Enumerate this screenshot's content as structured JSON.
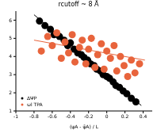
{
  "chart_data": {
    "type": "scatter",
    "title": "rcutoff ~ 8 Å",
    "x_label": "(ψA - ψ̄A) / L",
    "xlim": [
      -1,
      0.5
    ],
    "xticks": [
      -1,
      -0.8,
      -0.6,
      -0.4,
      -0.2,
      0,
      0.2,
      0.4
    ],
    "ylim": [
      1,
      6.5
    ],
    "yticks": [
      1,
      2,
      3,
      4,
      5,
      6
    ],
    "legend": "lower left",
    "grid": false,
    "series": [
      {
        "name": "ΔΨP",
        "color": "#000000",
        "marker": "circle",
        "x": [
          -0.74,
          -0.68,
          -0.62,
          -0.58,
          -0.52,
          -0.47,
          -0.43,
          -0.4,
          -0.36,
          -0.32,
          -0.28,
          -0.25,
          -0.21,
          -0.18,
          -0.14,
          -0.11,
          -0.07,
          -0.04,
          0,
          0.03,
          0.07,
          0.1,
          0.14,
          0.18,
          0.22,
          0.27,
          0.32
        ],
        "values": [
          5.95,
          5.7,
          5.5,
          5.2,
          5.1,
          4.9,
          4.6,
          4.75,
          4.4,
          4.2,
          4.1,
          3.95,
          3.8,
          3.6,
          3.5,
          3.3,
          3.2,
          3.0,
          2.9,
          2.8,
          2.6,
          2.4,
          2.3,
          2.1,
          1.95,
          1.7,
          1.5
        ],
        "fit": {
          "x": [
            -0.8,
            0.38
          ],
          "y": [
            6.3,
            1.3
          ]
        }
      },
      {
        "name": "ωl TPA",
        "color": "#e8643c",
        "marker": "circle",
        "x": [
          -0.72,
          -0.65,
          -0.6,
          -0.55,
          -0.5,
          -0.46,
          -0.42,
          -0.38,
          -0.35,
          -0.3,
          -0.27,
          -0.23,
          -0.2,
          -0.17,
          -0.13,
          -0.1,
          -0.06,
          -0.03,
          0,
          0.04,
          0.08,
          0.11,
          0.15,
          0.19,
          0.23,
          0.27,
          0.31,
          0.36
        ],
        "values": [
          4.3,
          5.1,
          4.6,
          5.3,
          3.9,
          4.8,
          4.2,
          5.2,
          3.7,
          4.5,
          4.9,
          3.6,
          4.4,
          5.0,
          3.4,
          4.1,
          4.7,
          3.3,
          4.3,
          3.9,
          4.6,
          3.2,
          4.0,
          3.5,
          2.9,
          3.8,
          3.1,
          3.6
        ],
        "fit": {
          "x": [
            -0.8,
            0.42
          ],
          "y": [
            4.9,
            3.8
          ]
        }
      }
    ]
  }
}
